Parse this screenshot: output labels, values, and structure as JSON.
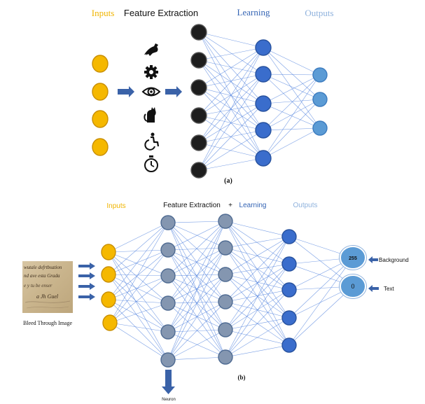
{
  "diagram_a": {
    "header_inputs": "Inputs",
    "header_feature": "Feature Extraction",
    "header_learning": "Learning",
    "header_outputs": "Outputs",
    "caption": "(a)",
    "feature_icons": [
      "bird-icon",
      "gear-icon",
      "eye-icon",
      "cat-icon",
      "accessible-icon",
      "stopwatch-icon"
    ]
  },
  "diagram_b": {
    "header_inputs": "Inputs",
    "header_feature": "Feature Extraction",
    "header_plus": "+",
    "header_learning": "Learning",
    "header_outputs": "Outputs",
    "caption": "(b)",
    "image_label": "Bleed Through  Image",
    "image_text_lines": [
      "wutale defrtbsation",
      "nd ave esta Grada",
      "e y tu be enser",
      "a Jh Guel"
    ],
    "neuron_label": "Neuron",
    "output_values": [
      "255",
      "0"
    ],
    "output_labels": [
      "Background",
      "Text"
    ]
  },
  "colors": {
    "input_yellow": "#f5b800",
    "input_stroke": "#c98f00",
    "feature_dark": "#1e1e1e",
    "learning_blue": "#3a6dcc",
    "output_light": "#5b9bd5",
    "hidden_gray": "#8496b0",
    "edge_blue": "#4a7ddc",
    "arrow_blue": "#3a62a8",
    "header_yellow": "#f0b400",
    "header_learning": "#3464b4",
    "header_outputs": "#8fb2dd"
  }
}
